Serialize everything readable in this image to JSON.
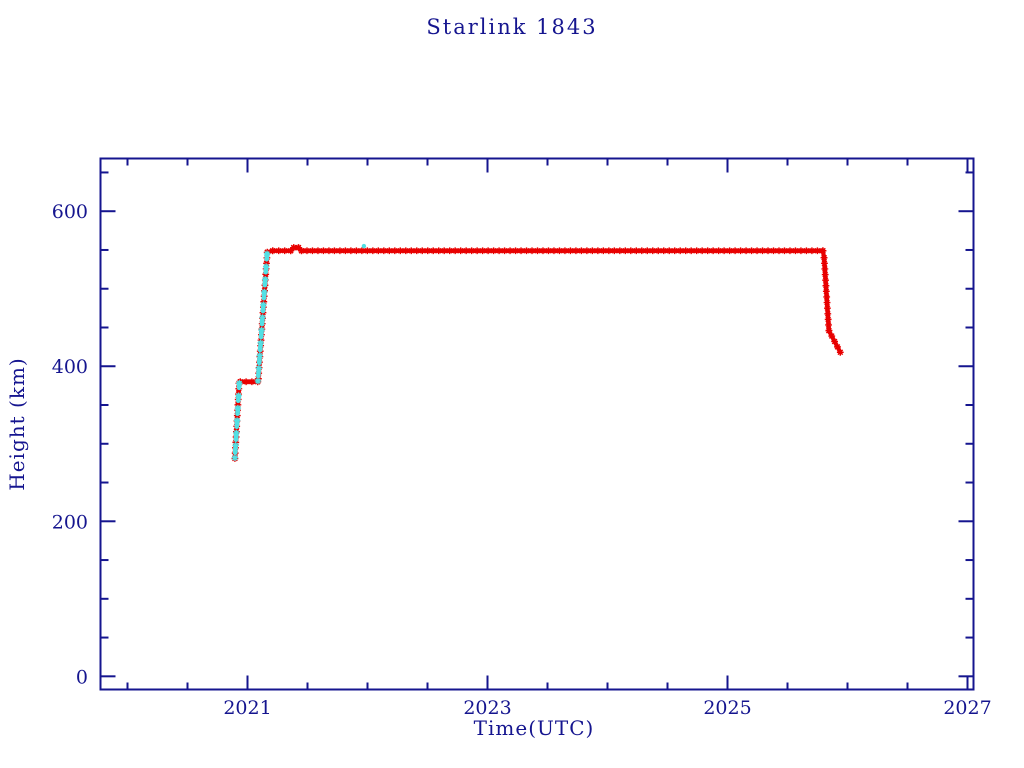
{
  "title": "Starlink 1843",
  "chart_data": {
    "type": "line",
    "title": "Starlink 1843",
    "xlabel": "Time(UTC)",
    "ylabel": "Height (km)",
    "xlim": [
      2019.775,
      2027.05
    ],
    "ylim": [
      -17,
      668
    ],
    "x_major_ticks": [
      2021,
      2023,
      2025,
      2027
    ],
    "x_tick_labels": [
      "2021",
      "2023",
      "2025",
      "2027"
    ],
    "x_minor_step": 0.5,
    "y_major_ticks": [
      0,
      200,
      400,
      600
    ],
    "y_tick_labels": [
      "0",
      "200",
      "400",
      "600"
    ],
    "y_minor_step": 50,
    "grid": false,
    "legend": null,
    "axis_color": "#15158f",
    "background": "#ffffff",
    "series": [
      {
        "name": "height-red",
        "color": "#e80000",
        "marker": "asterisk",
        "role": "primary-track",
        "path": [
          [
            2020.895,
            281
          ],
          [
            2020.93,
            378
          ],
          [
            2020.94,
            380
          ],
          [
            2021.085,
            380
          ],
          [
            2021.09,
            384
          ],
          [
            2021.165,
            547
          ],
          [
            2021.21,
            549
          ],
          [
            2021.36,
            549
          ],
          [
            2021.385,
            553
          ],
          [
            2021.425,
            553
          ],
          [
            2021.45,
            549
          ],
          [
            2025.795,
            549
          ],
          [
            2025.805,
            540
          ],
          [
            2025.845,
            446
          ],
          [
            2025.94,
            418
          ]
        ]
      },
      {
        "name": "height-cyan",
        "color": "#52e0e4",
        "marker": "asterisk",
        "role": "secondary-overlay",
        "dashed": true,
        "paths": [
          [
            [
              2020.895,
              282
            ],
            [
              2020.932,
              378
            ]
          ],
          [
            [
              2021.087,
              381
            ],
            [
              2021.163,
              545
            ]
          ]
        ],
        "points": [
          [
            2021.97,
            555
          ]
        ]
      }
    ]
  }
}
